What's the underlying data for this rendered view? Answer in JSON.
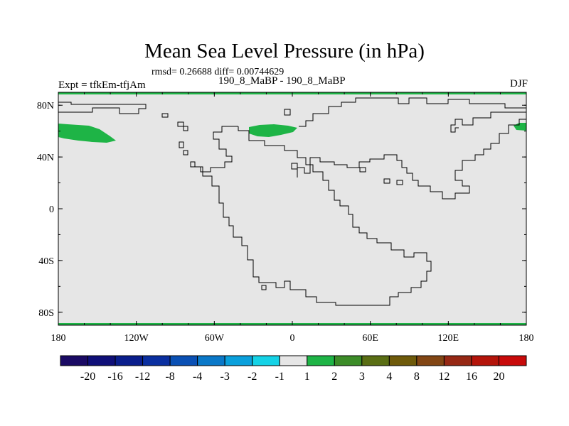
{
  "title": "Mean Sea Level Pressure (in hPa)",
  "stats_text": "rmsd= 0.26688 diff= 0.00744629",
  "expt_text": "Expt = tfkEm-tfjAm",
  "subtitle": "190_8_MaBP - 190_8_MaBP",
  "season": "DJF",
  "map": {
    "background_color": "#e6e6e6",
    "lon_labels": [
      "180",
      "120W",
      "60W",
      "0",
      "60E",
      "120E",
      "180"
    ],
    "lat_labels": [
      "80N",
      "40N",
      "0",
      "40S",
      "80S"
    ]
  },
  "colorbar": {
    "colors": [
      "#1a0a64",
      "#0f0f78",
      "#0a1e8c",
      "#0a2fa0",
      "#0a50b4",
      "#0a78c8",
      "#0aa0dc",
      "#14d2e6",
      "#e6e6e6",
      "#1eb446",
      "#3c8c28",
      "#5a6e14",
      "#6e5a0a",
      "#824614",
      "#962814",
      "#b4140a",
      "#c80a0a"
    ],
    "labels": [
      "-20",
      "-16",
      "-12",
      "-8",
      "-4",
      "-3",
      "-2",
      "-1",
      "1",
      "2",
      "3",
      "4",
      "8",
      "12",
      "16",
      "20"
    ]
  }
}
